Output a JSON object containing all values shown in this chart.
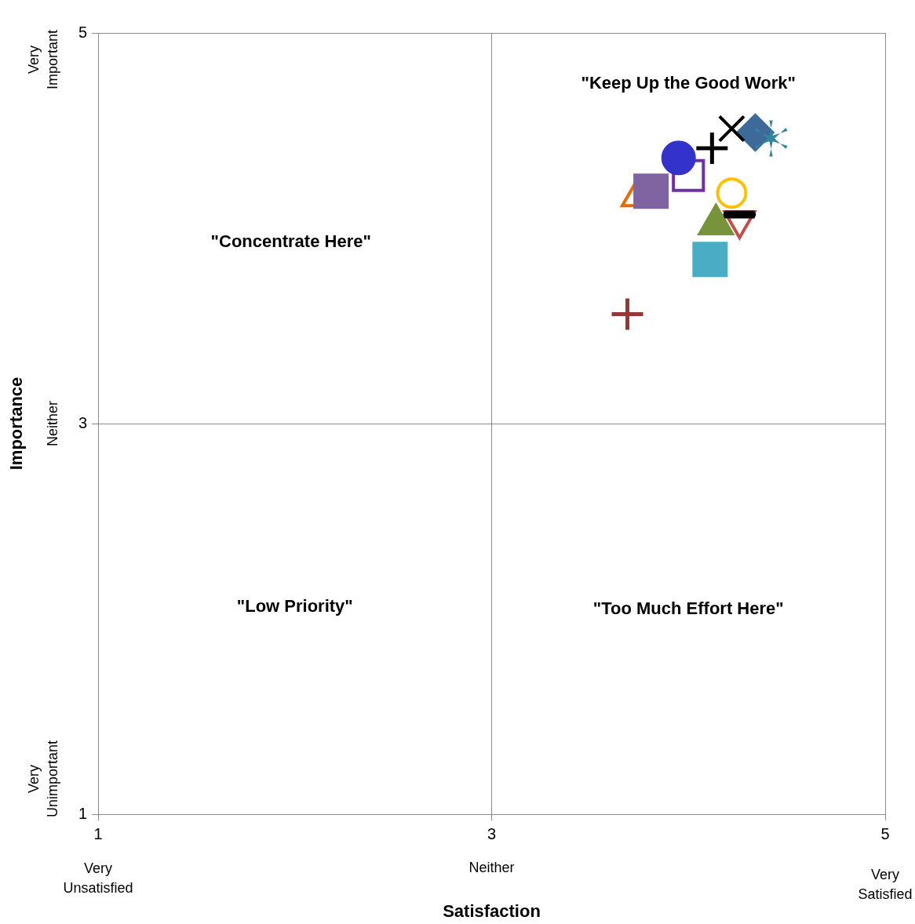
{
  "chart_data": {
    "type": "scatter",
    "xlabel": "Satisfaction",
    "ylabel": "Importance",
    "xlim": [
      1,
      5
    ],
    "ylim": [
      1,
      5
    ],
    "xticks": [
      1,
      3,
      5
    ],
    "yticks": [
      1,
      3,
      5
    ],
    "grid": true,
    "legend": false,
    "series": [
      {
        "color": "#000000",
        "marker": "cross",
        "x": [
          4.22
        ],
        "values": [
          4.51
        ]
      },
      {
        "color": "#3e6a9a",
        "marker": "diamond",
        "x": [
          4.34
        ],
        "values": [
          4.49
        ]
      },
      {
        "color": "#31859c",
        "marker": "star",
        "x": [
          4.42
        ],
        "values": [
          4.46
        ]
      },
      {
        "color": "#000000",
        "marker": "cross",
        "x": [
          4.12
        ],
        "values": [
          4.41
        ]
      },
      {
        "color": "#3333cc",
        "marker": "circle",
        "x": [
          3.95
        ],
        "values": [
          4.36
        ]
      },
      {
        "color": "#7030a0",
        "marker": "square-open",
        "x": [
          4.0
        ],
        "values": [
          4.27
        ]
      },
      {
        "color": "#8064a2",
        "marker": "square",
        "x": [
          3.81
        ],
        "values": [
          4.19
        ]
      },
      {
        "color": "#e36c09",
        "marker": "triangle-open",
        "x": [
          3.74
        ],
        "values": [
          4.16
        ]
      },
      {
        "color": "#ffc000",
        "marker": "circle-open",
        "x": [
          4.22
        ],
        "values": [
          4.18
        ]
      },
      {
        "color": "#000000",
        "x": [
          4.26
        ],
        "values": [
          4.07
        ]
      },
      {
        "color": "#c0504d",
        "marker": "triangle-down-open",
        "x": [
          4.26
        ],
        "values": [
          4.04
        ]
      },
      {
        "color": "#77933c",
        "marker": "triangle",
        "x": [
          4.14
        ],
        "values": [
          4.02
        ]
      },
      {
        "color": "#4bacc6",
        "marker": "square",
        "x": [
          4.11
        ],
        "values": [
          3.84
        ]
      },
      {
        "color": "#953735",
        "marker": "cross",
        "x": [
          3.69
        ],
        "values": [
          3.56
        ]
      }
    ],
    "annotations": [
      "\"Keep Up the Good Work\"",
      "\"Concentrate Here\"",
      "\"Low Priority\"",
      "\"Too Much Effort Here\"",
      "Very Unsatisfied",
      "Neither",
      "Very Satisfied",
      "Very Unimportant",
      "Neither",
      "Very Important"
    ]
  }
}
